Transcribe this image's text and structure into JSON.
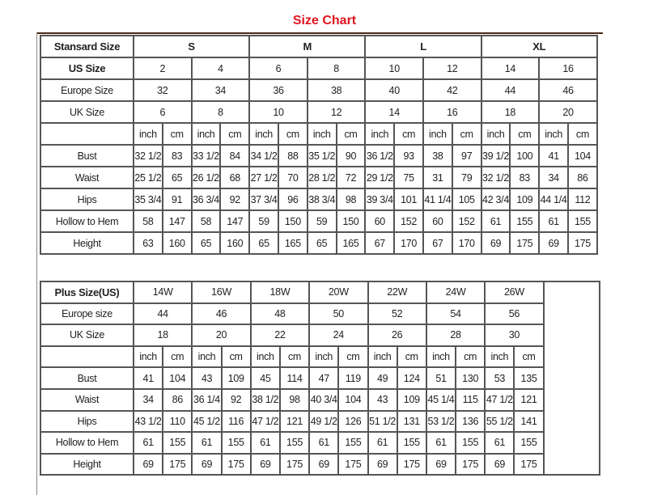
{
  "title": "Size Chart",
  "standard": {
    "header_label": "Stansard Size",
    "groups": [
      "S",
      "M",
      "L",
      "XL"
    ],
    "us_label": "US Size",
    "us": [
      "2",
      "4",
      "6",
      "8",
      "10",
      "12",
      "14",
      "16"
    ],
    "europe_label": "Europe Size",
    "europe": [
      "32",
      "34",
      "36",
      "38",
      "40",
      "42",
      "44",
      "46"
    ],
    "uk_label": "UK Size",
    "uk": [
      "6",
      "8",
      "10",
      "12",
      "14",
      "16",
      "18",
      "20"
    ],
    "unit_inch": "inch",
    "unit_cm": "cm",
    "measurements": [
      {
        "label": "Bust",
        "values": [
          "32 1/2",
          "83",
          "33 1/2",
          "84",
          "34 1/2",
          "88",
          "35 1/2",
          "90",
          "36 1/2",
          "93",
          "38",
          "97",
          "39 1/2",
          "100",
          "41",
          "104"
        ]
      },
      {
        "label": "Waist",
        "values": [
          "25 1/2",
          "65",
          "26 1/2",
          "68",
          "27 1/2",
          "70",
          "28 1/2",
          "72",
          "29 1/2",
          "75",
          "31",
          "79",
          "32 1/2",
          "83",
          "34",
          "86"
        ]
      },
      {
        "label": "Hips",
        "values": [
          "35 3/4",
          "91",
          "36 3/4",
          "92",
          "37 3/4",
          "96",
          "38 3/4",
          "98",
          "39 3/4",
          "101",
          "41 1/4",
          "105",
          "42 3/4",
          "109",
          "44 1/4",
          "112"
        ]
      },
      {
        "label": "Hollow to Hem",
        "values": [
          "58",
          "147",
          "58",
          "147",
          "59",
          "150",
          "59",
          "150",
          "60",
          "152",
          "60",
          "152",
          "61",
          "155",
          "61",
          "155"
        ]
      },
      {
        "label": "Height",
        "values": [
          "63",
          "160",
          "65",
          "160",
          "65",
          "165",
          "65",
          "165",
          "67",
          "170",
          "67",
          "170",
          "69",
          "175",
          "69",
          "175"
        ]
      }
    ]
  },
  "plus": {
    "header_label": "Plus Size(US)",
    "us": [
      "14W",
      "16W",
      "18W",
      "20W",
      "22W",
      "24W",
      "26W"
    ],
    "europe_label": "Europe size",
    "europe": [
      "44",
      "46",
      "48",
      "50",
      "52",
      "54",
      "56"
    ],
    "uk_label": "UK Size",
    "uk": [
      "18",
      "20",
      "22",
      "24",
      "26",
      "28",
      "30"
    ],
    "unit_inch": "inch",
    "unit_cm": "cm",
    "measurements": [
      {
        "label": "Bust",
        "values": [
          "41",
          "104",
          "43",
          "109",
          "45",
          "114",
          "47",
          "119",
          "49",
          "124",
          "51",
          "130",
          "53",
          "135"
        ]
      },
      {
        "label": "Waist",
        "values": [
          "34",
          "86",
          "36 1/4",
          "92",
          "38 1/2",
          "98",
          "40 3/4",
          "104",
          "43",
          "109",
          "45 1/4",
          "115",
          "47 1/2",
          "121"
        ]
      },
      {
        "label": "Hips",
        "values": [
          "43 1/2",
          "110",
          "45 1/2",
          "116",
          "47 1/2",
          "121",
          "49 1/2",
          "126",
          "51 1/2",
          "131",
          "53 1/2",
          "136",
          "55 1/2",
          "141"
        ]
      },
      {
        "label": "Hollow to Hem",
        "values": [
          "61",
          "155",
          "61",
          "155",
          "61",
          "155",
          "61",
          "155",
          "61",
          "155",
          "61",
          "155",
          "61",
          "155"
        ]
      },
      {
        "label": "Height",
        "values": [
          "69",
          "175",
          "69",
          "175",
          "69",
          "175",
          "69",
          "175",
          "69",
          "175",
          "69",
          "175",
          "69",
          "175"
        ]
      }
    ]
  },
  "colors": {
    "title": "#e0141e",
    "border": "#555555",
    "frame": "#4a2a1a"
  }
}
